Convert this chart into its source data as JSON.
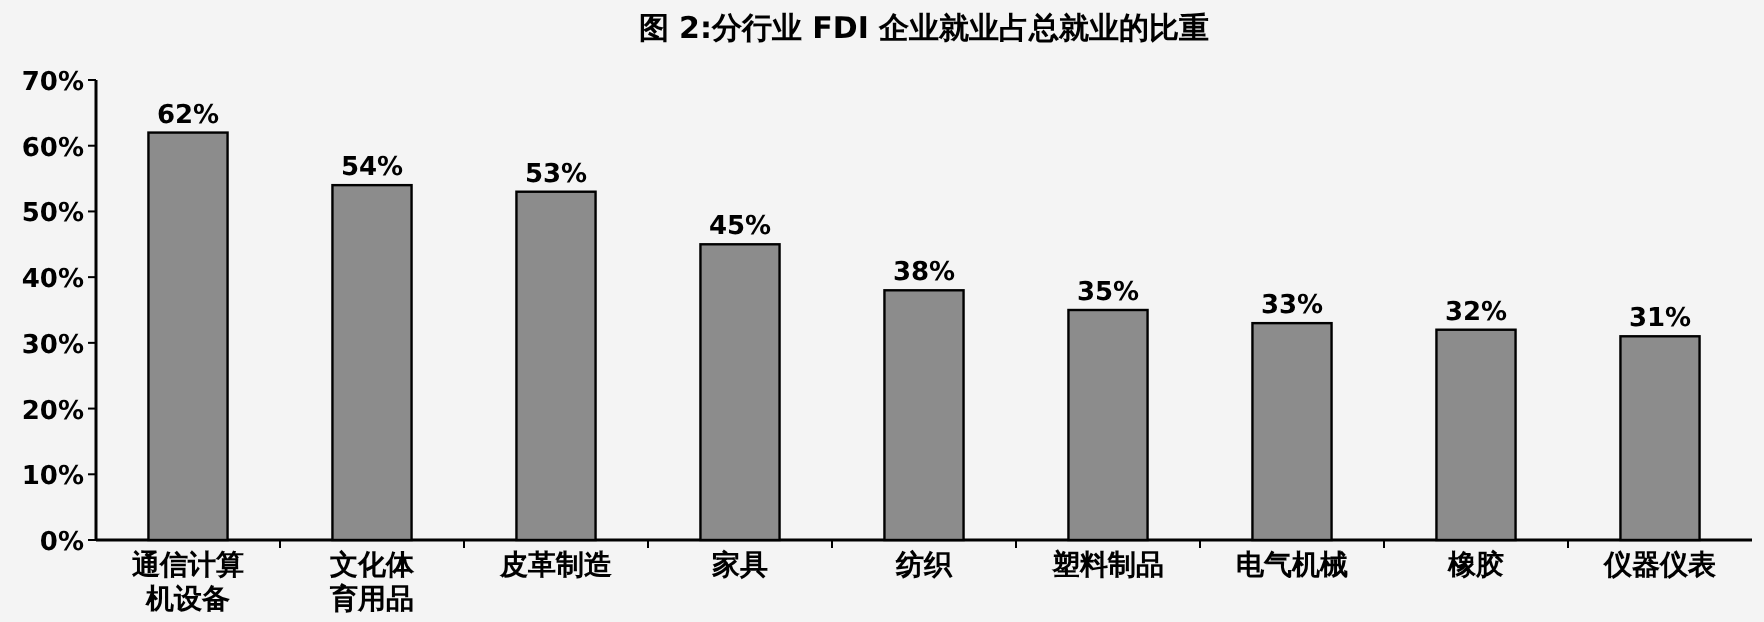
{
  "chart_data": {
    "type": "bar",
    "title": "图 2:分行业 FDI 企业就业占总就业的比重",
    "categories": [
      "通信计算机设备",
      "文化体育用品",
      "皮革制造",
      "家具",
      "纺织",
      "塑料制品",
      "电气机械",
      "橡胶",
      "仪器仪表"
    ],
    "values": [
      62,
      54,
      53,
      45,
      38,
      35,
      33,
      32,
      31
    ],
    "value_labels": [
      "62%",
      "54%",
      "53%",
      "45%",
      "38%",
      "35%",
      "33%",
      "32%",
      "31%"
    ],
    "color": "#8c8c8c",
    "ylim": [
      0,
      70
    ],
    "yticks": [
      {
        "value": 0,
        "label": "0%"
      },
      {
        "value": 10,
        "label": "10%"
      },
      {
        "value": 20,
        "label": "20%"
      },
      {
        "value": 30,
        "label": "30%"
      },
      {
        "value": 40,
        "label": "40%"
      },
      {
        "value": 50,
        "label": "50%"
      },
      {
        "value": 60,
        "label": "60%"
      },
      {
        "value": 70,
        "label": "70%"
      }
    ],
    "grid": false
  }
}
